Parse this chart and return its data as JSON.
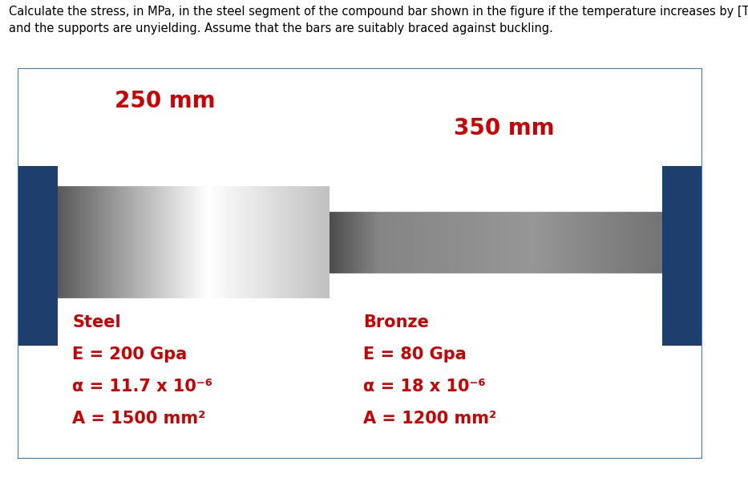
{
  "title_text": "Calculate the stress, in MPa, in the steel segment of the compound bar shown in the figure if the temperature increases by [T] °C\nand the supports are unyielding. Assume that the bars are suitably braced against buckling.",
  "title_fontsize": 10.5,
  "title_color": "#000000",
  "background_color": "#000000",
  "figure_bg": "#ffffff",
  "steel_label": "250 mm",
  "bronze_label": "350 mm",
  "label_color": "#cc0000",
  "label_fontsize": 20,
  "support_color": "#1e3f6e",
  "steel_text": [
    "Steel",
    "E = 200 Gpa",
    "α = 11.7 x 10⁻⁶",
    "A = 1500 mm²"
  ],
  "bronze_text": [
    "Bronze",
    "E = 80 Gpa",
    "α = 18 x 10⁻⁶",
    "A = 1200 mm²"
  ],
  "text_color": "#cc0000",
  "text_fontsize": 15,
  "border_color": "#3a78c9",
  "dots_bg": "#2a2a2a",
  "panel_bg": "#e8e8e8"
}
